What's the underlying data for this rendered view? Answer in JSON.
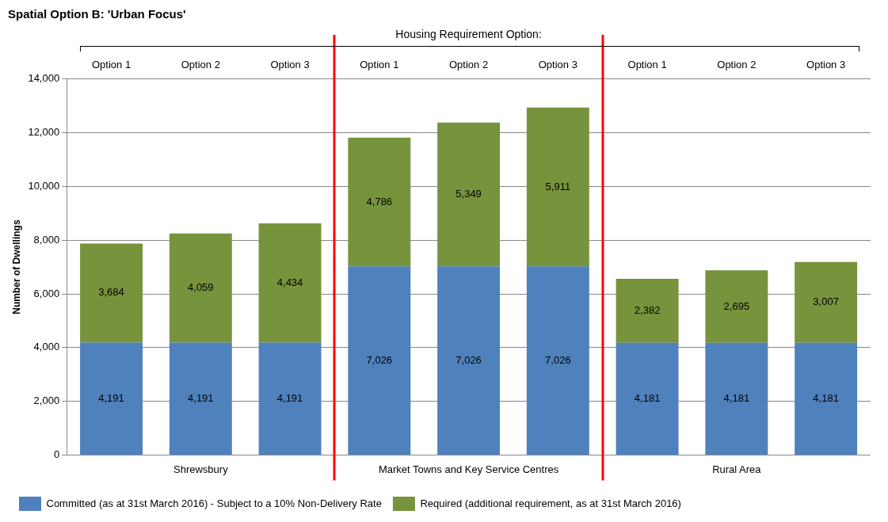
{
  "chart_data": {
    "type": "bar",
    "title": "Spatial Option B: 'Urban Focus'",
    "ylabel": "Number of Dwellings",
    "categories": [
      "Option 1",
      "Option 2",
      "Option 3",
      "Option 1",
      "Option 2",
      "Option 3",
      "Option 1",
      "Option 2",
      "Option 3"
    ],
    "series": [
      {
        "name": "Committed (as at 31st March 2016) - Subject to a 10% Non-Delivery Rate",
        "color": "#4f81bd",
        "values": [
          4191,
          4191,
          4191,
          7026,
          7026,
          7026,
          4181,
          4181,
          4181
        ],
        "value_labels": [
          "4,191",
          "4,191",
          "4,191",
          "7,026",
          "7,026",
          "7,026",
          "4,181",
          "4,181",
          "4,181"
        ]
      },
      {
        "name": "Required (additional requirement, as at 31st March 2016)",
        "color": "#77933c",
        "values": [
          3684,
          4059,
          4434,
          4786,
          5349,
          5911,
          2382,
          2695,
          3007
        ],
        "value_labels": [
          "3,684",
          "4,059",
          "4,434",
          "4,786",
          "5,349",
          "5,911",
          "2,382",
          "2,695",
          "3,007"
        ]
      }
    ],
    "stacked": true,
    "ylim": [
      0,
      14000
    ],
    "yticks": [
      0,
      {
        "value": 2000,
        "label": "2,000"
      },
      {
        "value": 4000,
        "label": "4,000"
      },
      {
        "value": 6000,
        "label": "6,000"
      },
      {
        "value": 8000,
        "label": "8,000"
      },
      {
        "value": 10000,
        "label": "10,000"
      },
      {
        "value": 12000,
        "label": "12,000"
      },
      {
        "value": 14000,
        "label": "14,000"
      }
    ],
    "grid": "y",
    "legend": "bottom left",
    "annotations": [
      "Housing Requirement Option:",
      "Shrewsbury",
      "Market Towns and Key Service Centres",
      "Rural Area"
    ]
  }
}
